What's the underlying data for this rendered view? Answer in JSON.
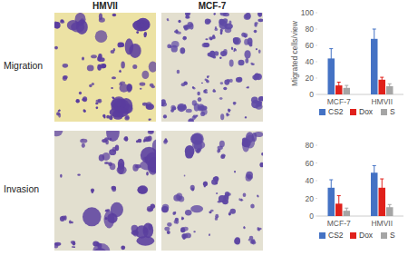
{
  "panel": {
    "columns": [
      "HMVII",
      "MCF-7"
    ],
    "rows": [
      "Migration",
      "Invasion"
    ]
  },
  "chart_data": [
    {
      "type": "bar",
      "y_label": "Migrated cells/view",
      "categories": [
        "MCF-7",
        "HMVII"
      ],
      "series": [
        {
          "name": "CS2",
          "color": "#4472c4",
          "values": [
            44,
            68
          ],
          "errors": [
            12,
            12
          ]
        },
        {
          "name": "Dox",
          "color": "#e0201b",
          "values": [
            11,
            18
          ],
          "errors": [
            4,
            3
          ]
        },
        {
          "name": "S",
          "color": "#a5a5a5",
          "values": [
            8,
            10
          ],
          "errors": [
            3,
            3
          ]
        }
      ],
      "ylim": [
        0,
        100
      ],
      "yticks": [
        0,
        20,
        40,
        60,
        80,
        100
      ],
      "grid": false,
      "legend": "bottom"
    },
    {
      "type": "bar",
      "categories": [
        "MCF-7",
        "HMVII"
      ],
      "series": [
        {
          "name": "CS2",
          "color": "#4472c4",
          "values": [
            32,
            49
          ],
          "errors": [
            9,
            8
          ]
        },
        {
          "name": "Dox",
          "color": "#e0201b",
          "values": [
            14,
            32
          ],
          "errors": [
            9,
            10
          ]
        },
        {
          "name": "S",
          "color": "#a5a5a5",
          "values": [
            6,
            10
          ],
          "errors": [
            3,
            3
          ]
        }
      ],
      "ylim": [
        0,
        80
      ],
      "yticks": [
        0,
        20,
        40,
        60,
        80
      ],
      "grid": false,
      "legend": "bottom"
    }
  ]
}
